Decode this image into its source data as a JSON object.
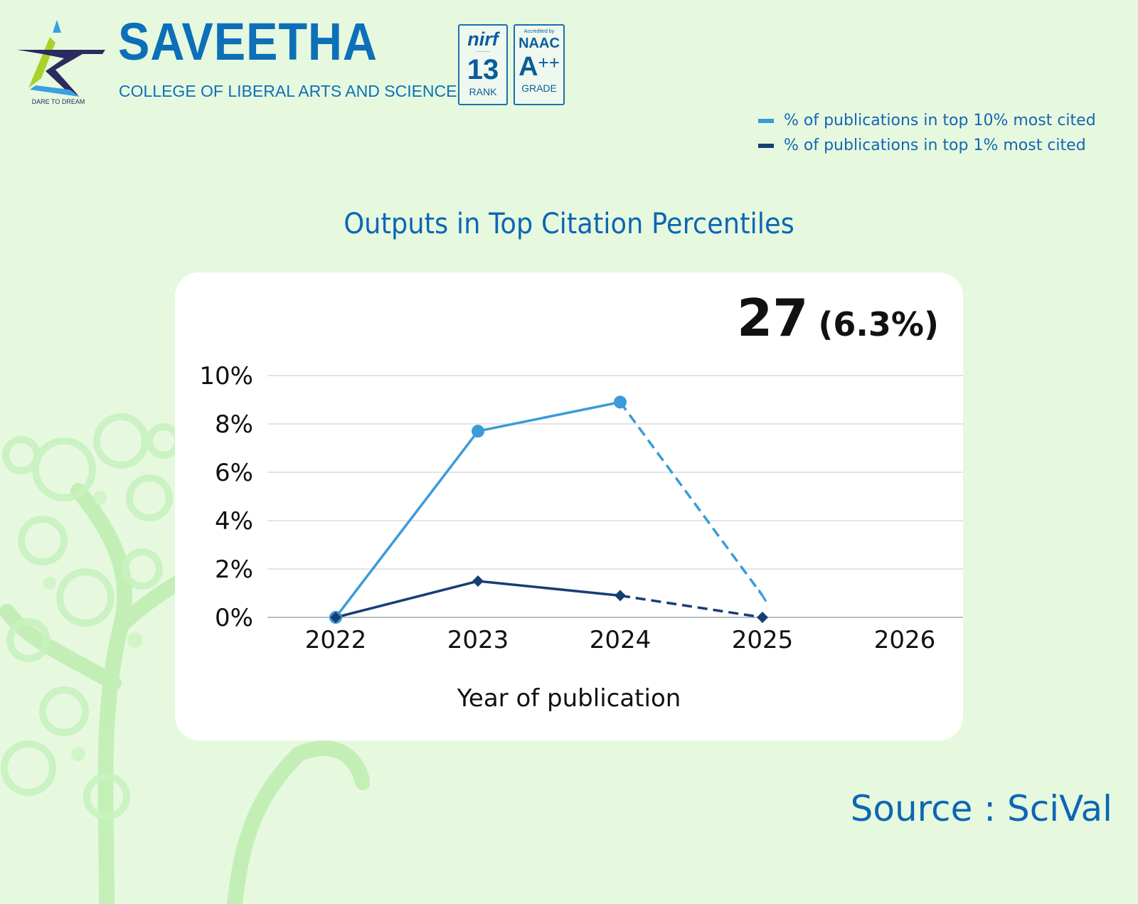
{
  "header": {
    "brand": "SAVEETHA",
    "subtitle": "COLLEGE OF LIBERAL ARTS AND SCIENCES",
    "logo_tagline": "DARE TO DREAM"
  },
  "badges": {
    "nirf": {
      "logo": "nirf",
      "rank": "13",
      "caption": "RANK"
    },
    "naac": {
      "top": "Accredited by",
      "name": "NAAC",
      "grade": "A",
      "grade_plus": "++",
      "caption": "GRADE"
    }
  },
  "colors": {
    "background": "#e6f9df",
    "brand": "#0d6fb8",
    "series_top10": "#3a9bd8",
    "series_top1": "#163e73"
  },
  "headline": {
    "count": "27",
    "percent": "(6.3%)"
  },
  "source": "Source : SciVal",
  "chart_data": {
    "type": "line",
    "title": "Outputs in Top Citation Percentiles",
    "xlabel": "Year of publication",
    "ylabel": "",
    "x": [
      "2022",
      "2023",
      "2024",
      "2025",
      "2026"
    ],
    "yticks": [
      "0%",
      "2%",
      "4%",
      "6%",
      "8%",
      "10%"
    ],
    "ylim": [
      0,
      10
    ],
    "grid": true,
    "legend": "top-right",
    "series": [
      {
        "name": "% of publications in top 10% most cited",
        "values": [
          0,
          7.7,
          8.9,
          0.9,
          null
        ],
        "color": "#3a9bd8",
        "marker": "circle",
        "dashed_from": 2
      },
      {
        "name": "% of publications in top 1% most cited",
        "values": [
          0,
          1.5,
          0.9,
          0,
          null
        ],
        "color": "#163e73",
        "marker": "diamond",
        "dashed_from": 2
      }
    ]
  }
}
